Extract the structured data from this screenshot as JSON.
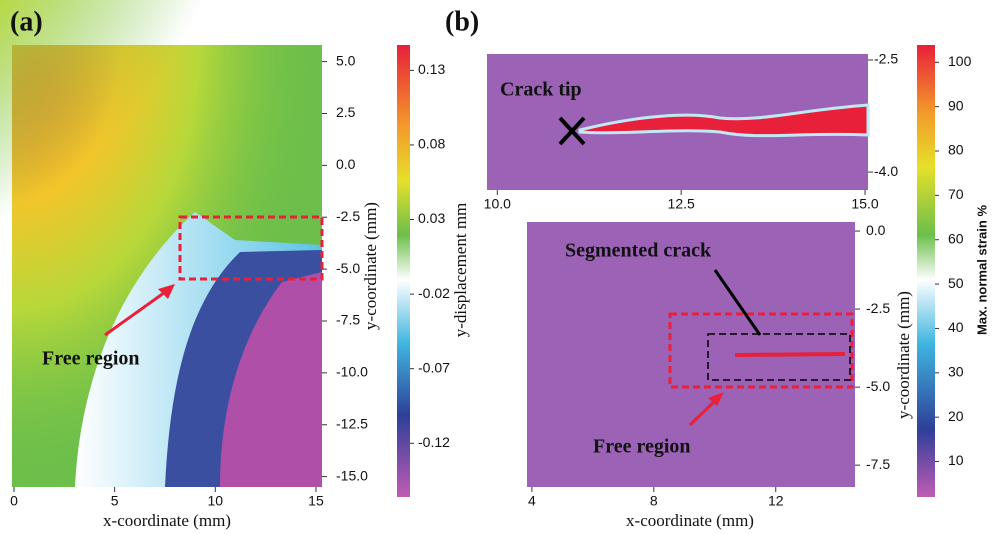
{
  "chart_data": [
    {
      "type": "heatmap",
      "panel_label": "(a)",
      "xlabel": "x-coordinate (mm)",
      "ylabel": "y-coordinate (mm)",
      "xlim": [
        -0.1,
        15.3
      ],
      "xticks": [
        0,
        5,
        10,
        15
      ],
      "ylim": [
        -15.5,
        5.8
      ],
      "yticks": [
        {
          "value": 5,
          "label": "5.0"
        },
        2.5,
        {
          "value": 0,
          "label": "0.0"
        },
        -2.5,
        {
          "value": -5,
          "label": "-5.0"
        },
        -7.5,
        {
          "value": -10,
          "label": "-10.0"
        },
        -12.5,
        {
          "value": -15,
          "label": "-15.0"
        }
      ],
      "colorbar_label": "y-displacement mm",
      "clim": [
        -0.156,
        0.147
      ],
      "cticks": [
        0.13,
        0.08,
        0.03,
        -0.02,
        -0.07,
        -0.12
      ],
      "annotations": [
        "Free region"
      ]
    },
    {
      "type": "heatmap",
      "panel_label": "(b)",
      "xlim": [
        9.86,
        15.04
      ],
      "xticks": [
        {
          "value": 10,
          "label": "10.0"
        },
        12.5,
        {
          "value": 15,
          "label": "15.0"
        }
      ],
      "ylim": [
        -4.24,
        -2.42
      ],
      "yticks": [
        -2.5,
        {
          "value": -4,
          "label": "-4.0"
        }
      ],
      "annotations": [
        "Crack tip"
      ]
    },
    {
      "type": "heatmap",
      "xlabel": "x-coordinate (mm)",
      "ylabel": "y-coordinate (mm)",
      "xlim": [
        3.84,
        14.6
      ],
      "xticks": [
        4,
        8,
        12
      ],
      "ylim": [
        -8.2,
        0.29
      ],
      "yticks": [
        {
          "value": 0,
          "label": "0.0"
        },
        -2.5,
        {
          "value": -5,
          "label": "-5.0"
        },
        -7.5
      ],
      "colorbar_label": "Max. normal strain %",
      "clim": [
        2,
        103.9
      ],
      "cticks": [
        10,
        20,
        30,
        40,
        50,
        60,
        70,
        80,
        90,
        100
      ],
      "annotations": [
        "Segmented crack",
        "Free region"
      ]
    }
  ]
}
